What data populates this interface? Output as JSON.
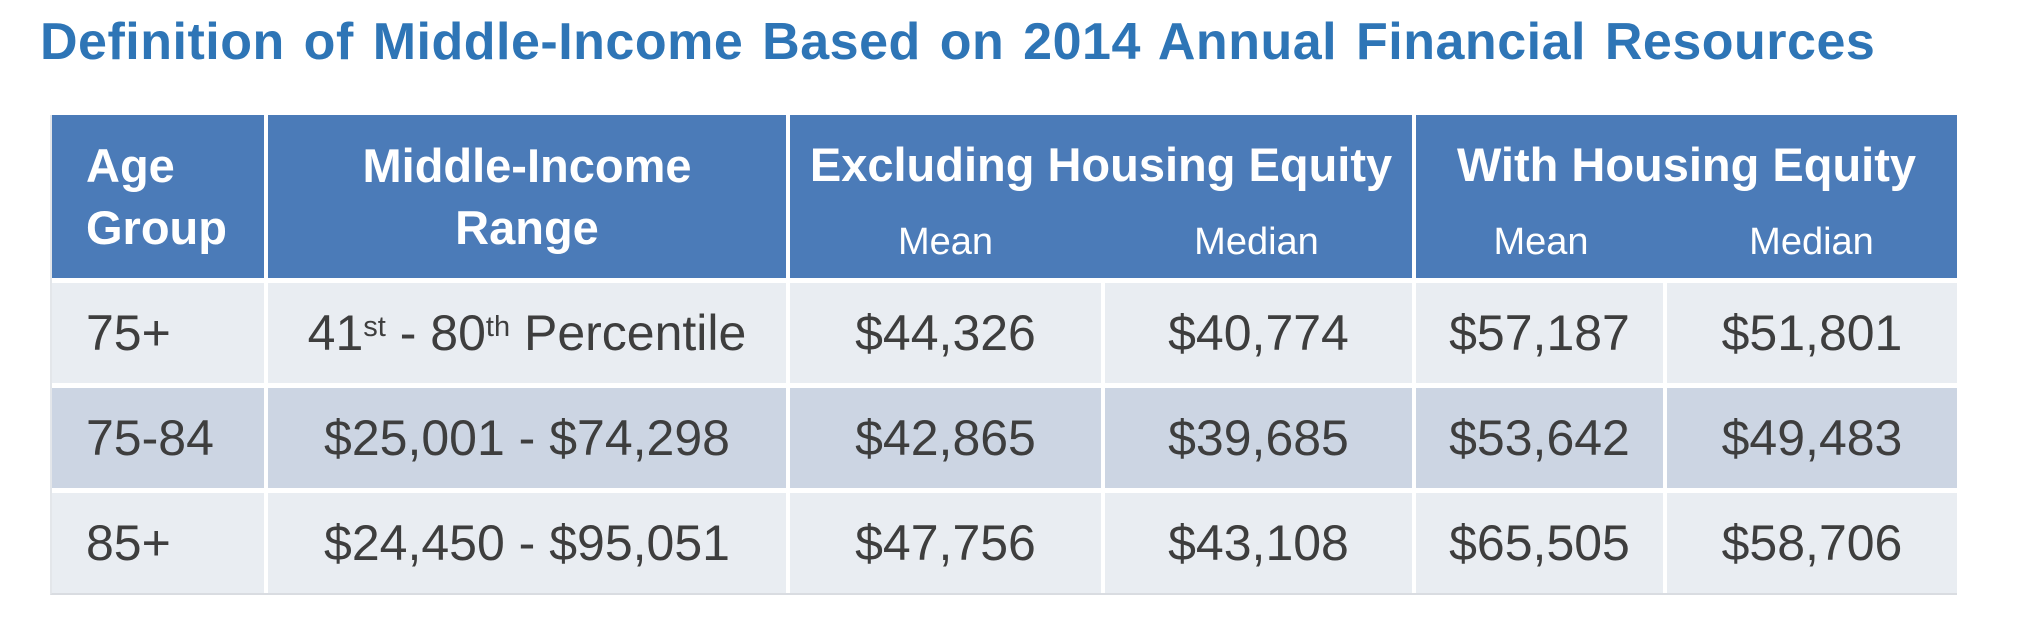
{
  "colors": {
    "title-blue": "#2e75b6",
    "header-bg": "#4b7bb8",
    "header-text": "#ffffff",
    "row-light": "#e9edf2",
    "row-dark": "#ccd5e3",
    "body-text": "#3e3e3e"
  },
  "title": "Definition of Middle-Income Based on 2014 Annual Financial Resources",
  "table": {
    "header": {
      "age_group": "Age Group",
      "range": "Middle-Income Range",
      "groups": [
        {
          "label": "Excluding Housing Equity",
          "sub": [
            "Mean",
            "Median"
          ]
        },
        {
          "label": "With Housing Equity",
          "sub": [
            "Mean",
            "Median"
          ]
        }
      ]
    },
    "rows": [
      {
        "age": "75+",
        "range": "41st - 80th Percentile",
        "range_rich": {
          "n1": "41",
          "s1": "st",
          "sep": " - ",
          "n2": "80",
          "s2": "th",
          "rest": " Percentile"
        },
        "excl_mean": "$44,326",
        "excl_median": "$40,774",
        "with_mean": "$57,187",
        "with_median": "$51,801"
      },
      {
        "age": "75-84",
        "range": "$25,001 - $74,298",
        "excl_mean": "$42,865",
        "excl_median": "$39,685",
        "with_mean": "$53,642",
        "with_median": "$49,483"
      },
      {
        "age": "85+",
        "range": "$24,450 - $95,051",
        "excl_mean": "$47,756",
        "excl_median": "$43,108",
        "with_mean": "$65,505",
        "with_median": "$58,706"
      }
    ]
  },
  "chart_data": {
    "type": "table",
    "title": "Definition of Middle-Income Based on 2014 Annual Financial Resources",
    "columns": [
      "Age Group",
      "Middle-Income Range",
      "Excluding Housing Equity - Mean",
      "Excluding Housing Equity - Median",
      "With Housing Equity - Mean",
      "With Housing Equity - Median"
    ],
    "rows": [
      [
        "75+",
        "41st - 80th Percentile",
        "$44,326",
        "$40,774",
        "$57,187",
        "$51,801"
      ],
      [
        "75-84",
        "$25,001 - $74,298",
        "$42,865",
        "$39,685",
        "$53,642",
        "$49,483"
      ],
      [
        "85+",
        "$24,450 - $95,051",
        "$47,756",
        "$43,108",
        "$65,505",
        "$58,706"
      ]
    ]
  }
}
